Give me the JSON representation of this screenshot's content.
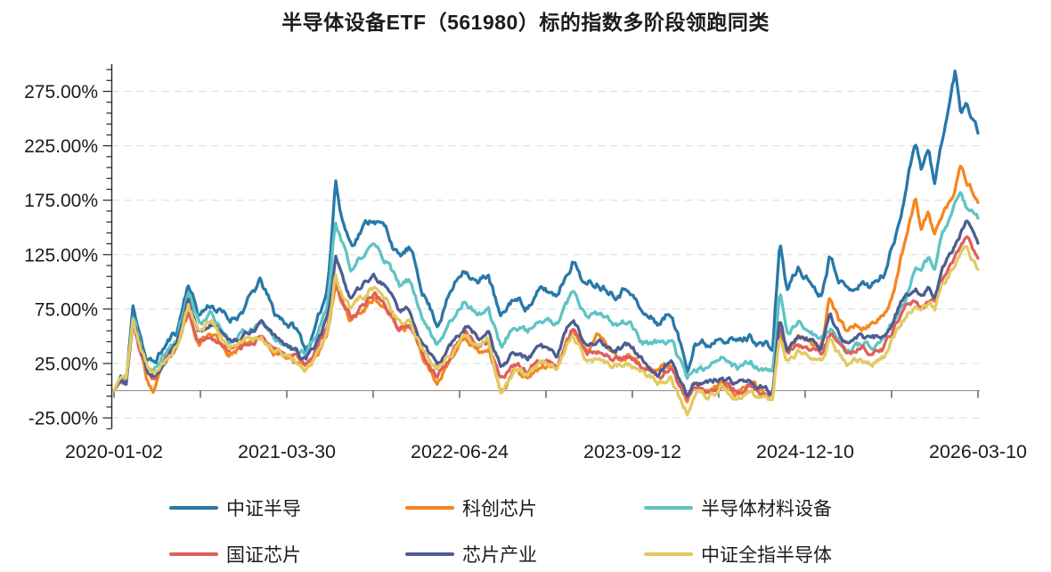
{
  "chart_data": {
    "type": "line",
    "title": "半导体设备ETF（561980）标的指数多阶段领跑同类",
    "legend_position": "bottom",
    "grid": "horizontal-dashed",
    "zero_line": true,
    "y_axis": {
      "unit": "%",
      "min": -35,
      "max": 300,
      "minor_tick_step": 10,
      "labels": [
        {
          "value": 275,
          "label": "275.00%"
        },
        {
          "value": 225,
          "label": "225.00%"
        },
        {
          "value": 175,
          "label": "175.00%"
        },
        {
          "value": 125,
          "label": "125.00%"
        },
        {
          "value": 75,
          "label": "75.00%"
        },
        {
          "value": 25,
          "label": "25.00%"
        },
        {
          "value": -25,
          "label": "-25.00%"
        }
      ]
    },
    "x_axis": {
      "labels": [
        "2020-01-02",
        "2021-03-30",
        "2022-06-24",
        "2023-09-12",
        "2024-12-10",
        "2026-03-10"
      ],
      "minor_ticks_between_labels": 1
    },
    "t": [
      0,
      0.008,
      0.014,
      0.022,
      0.03,
      0.038,
      0.046,
      0.06,
      0.073,
      0.086,
      0.098,
      0.112,
      0.124,
      0.133,
      0.148,
      0.16,
      0.17,
      0.186,
      0.21,
      0.222,
      0.235,
      0.246,
      0.2505,
      0.2565,
      0.263,
      0.2745,
      0.287,
      0.301,
      0.315,
      0.33,
      0.342,
      0.356,
      0.374,
      0.388,
      0.406,
      0.422,
      0.433,
      0.448,
      0.462,
      0.478,
      0.495,
      0.512,
      0.531,
      0.547,
      0.56,
      0.58,
      0.596,
      0.612,
      0.63,
      0.645,
      0.6635,
      0.672,
      0.688,
      0.703,
      0.722,
      0.737,
      0.7625,
      0.7705,
      0.779,
      0.792,
      0.806,
      0.818,
      0.8285,
      0.838,
      0.848,
      0.862,
      0.876,
      0.89,
      0.904,
      0.916,
      0.9275,
      0.9345,
      0.9425,
      0.95,
      0.9585,
      0.9675,
      0.9735,
      0.98,
      0.9865,
      1.0
    ],
    "series": [
      {
        "name": "中证半导",
        "color": "#2878a8",
        "seed": 11,
        "noise_amp": 1.2,
        "values": [
          0,
          12,
          8,
          76,
          55,
          28,
          25,
          42,
          55,
          100,
          70,
          80,
          72,
          64,
          74,
          88,
          100,
          70,
          58,
          38,
          60,
          90,
          130,
          196,
          160,
          135,
          150,
          160,
          148,
          122,
          130,
          95,
          62,
          88,
          115,
          98,
          108,
          64,
          85,
          78,
          92,
          88,
          122,
          96,
          100,
          92,
          98,
          70,
          62,
          72,
          20,
          48,
          42,
          55,
          45,
          50,
          38,
          137,
          92,
          112,
          100,
          88,
          127,
          110,
          93,
          100,
          97,
          105,
          140,
          185,
          232,
          207,
          222,
          188,
          230,
          265,
          293,
          255,
          268,
          240
        ]
      },
      {
        "name": "科创芯片",
        "color": "#f5861f",
        "seed": 23,
        "noise_amp": 1.0,
        "values": [
          0,
          14,
          10,
          66,
          40,
          10,
          -2,
          25,
          40,
          70,
          46,
          54,
          44,
          34,
          40,
          44,
          48,
          37,
          30,
          23,
          36,
          50,
          65,
          96,
          80,
          64,
          75,
          86,
          76,
          56,
          60,
          38,
          2,
          28,
          48,
          38,
          42,
          -1,
          18,
          15,
          24,
          22,
          54,
          35,
          52,
          30,
          33,
          22,
          15,
          22,
          -12,
          4,
          0,
          9,
          0,
          4,
          -6,
          58,
          38,
          52,
          48,
          40,
          85,
          65,
          55,
          62,
          60,
          68,
          95,
          140,
          180,
          150,
          165,
          142,
          160,
          172,
          185,
          203,
          193,
          176
        ]
      },
      {
        "name": "半导体材料设备",
        "color": "#5fc3c3",
        "seed": 37,
        "noise_amp": 1.0,
        "values": [
          0,
          11,
          7,
          64,
          42,
          22,
          17,
          35,
          48,
          90,
          62,
          70,
          58,
          48,
          54,
          58,
          63,
          52,
          42,
          33,
          50,
          75,
          105,
          155,
          138,
          108,
          122,
          133,
          120,
          95,
          100,
          70,
          45,
          62,
          85,
          70,
          78,
          40,
          60,
          55,
          64,
          60,
          87,
          66,
          68,
          60,
          64,
          44,
          42,
          48,
          8,
          25,
          20,
          28,
          20,
          24,
          14,
          89,
          52,
          62,
          52,
          44,
          55,
          48,
          38,
          42,
          43,
          46,
          62,
          85,
          113,
          105,
          120,
          110,
          140,
          160,
          175,
          188,
          170,
          158
        ]
      },
      {
        "name": "国证芯片",
        "color": "#df5f5c",
        "seed": 53,
        "noise_amp": 0.9,
        "values": [
          0,
          10,
          6,
          58,
          35,
          16,
          12,
          28,
          40,
          68,
          44,
          52,
          45,
          36,
          42,
          47,
          52,
          40,
          33,
          27,
          40,
          55,
          70,
          100,
          84,
          68,
          78,
          90,
          80,
          58,
          62,
          36,
          14,
          32,
          52,
          42,
          46,
          9,
          22,
          18,
          28,
          24,
          55,
          33,
          35,
          28,
          32,
          22,
          14,
          20,
          -12,
          4,
          0,
          8,
          0,
          3,
          -6,
          56,
          35,
          45,
          40,
          33,
          52,
          44,
          35,
          38,
          37,
          40,
          58,
          75,
          85,
          78,
          85,
          80,
          100,
          112,
          120,
          133,
          140,
          120
        ]
      },
      {
        "name": "芯片产业",
        "color": "#4c5d92",
        "seed": 71,
        "noise_amp": 0.9,
        "values": [
          0,
          11,
          7,
          62,
          40,
          20,
          15,
          30,
          44,
          84,
          56,
          62,
          52,
          44,
          50,
          54,
          59,
          48,
          38,
          29,
          45,
          65,
          85,
          122,
          104,
          84,
          95,
          104,
          95,
          70,
          76,
          45,
          22,
          42,
          60,
          48,
          54,
          19,
          32,
          28,
          38,
          34,
          66,
          42,
          45,
          38,
          42,
          28,
          18,
          25,
          -8,
          8,
          4,
          12,
          4,
          8,
          -2,
          67,
          40,
          52,
          46,
          38,
          74,
          55,
          45,
          50,
          48,
          52,
          70,
          88,
          94,
          85,
          95,
          88,
          110,
          125,
          135,
          145,
          155,
          130
        ]
      },
      {
        "name": "中证全指半导体",
        "color": "#e2ca62",
        "seed": 89,
        "noise_amp": 1.0,
        "values": [
          0,
          13,
          9,
          65,
          42,
          22,
          14,
          32,
          45,
          79,
          55,
          62,
          50,
          40,
          45,
          46,
          50,
          40,
          30,
          19,
          35,
          52,
          70,
          106,
          90,
          73,
          84,
          93,
          85,
          62,
          66,
          40,
          20,
          36,
          50,
          40,
          44,
          0,
          20,
          15,
          25,
          20,
          50,
          28,
          30,
          24,
          27,
          17,
          10,
          15,
          -20,
          -2,
          -6,
          2,
          -6,
          -3,
          -12,
          50,
          30,
          38,
          33,
          26,
          48,
          38,
          26,
          30,
          29,
          32,
          50,
          68,
          78,
          72,
          80,
          74,
          95,
          108,
          115,
          125,
          132,
          112
        ]
      }
    ]
  }
}
